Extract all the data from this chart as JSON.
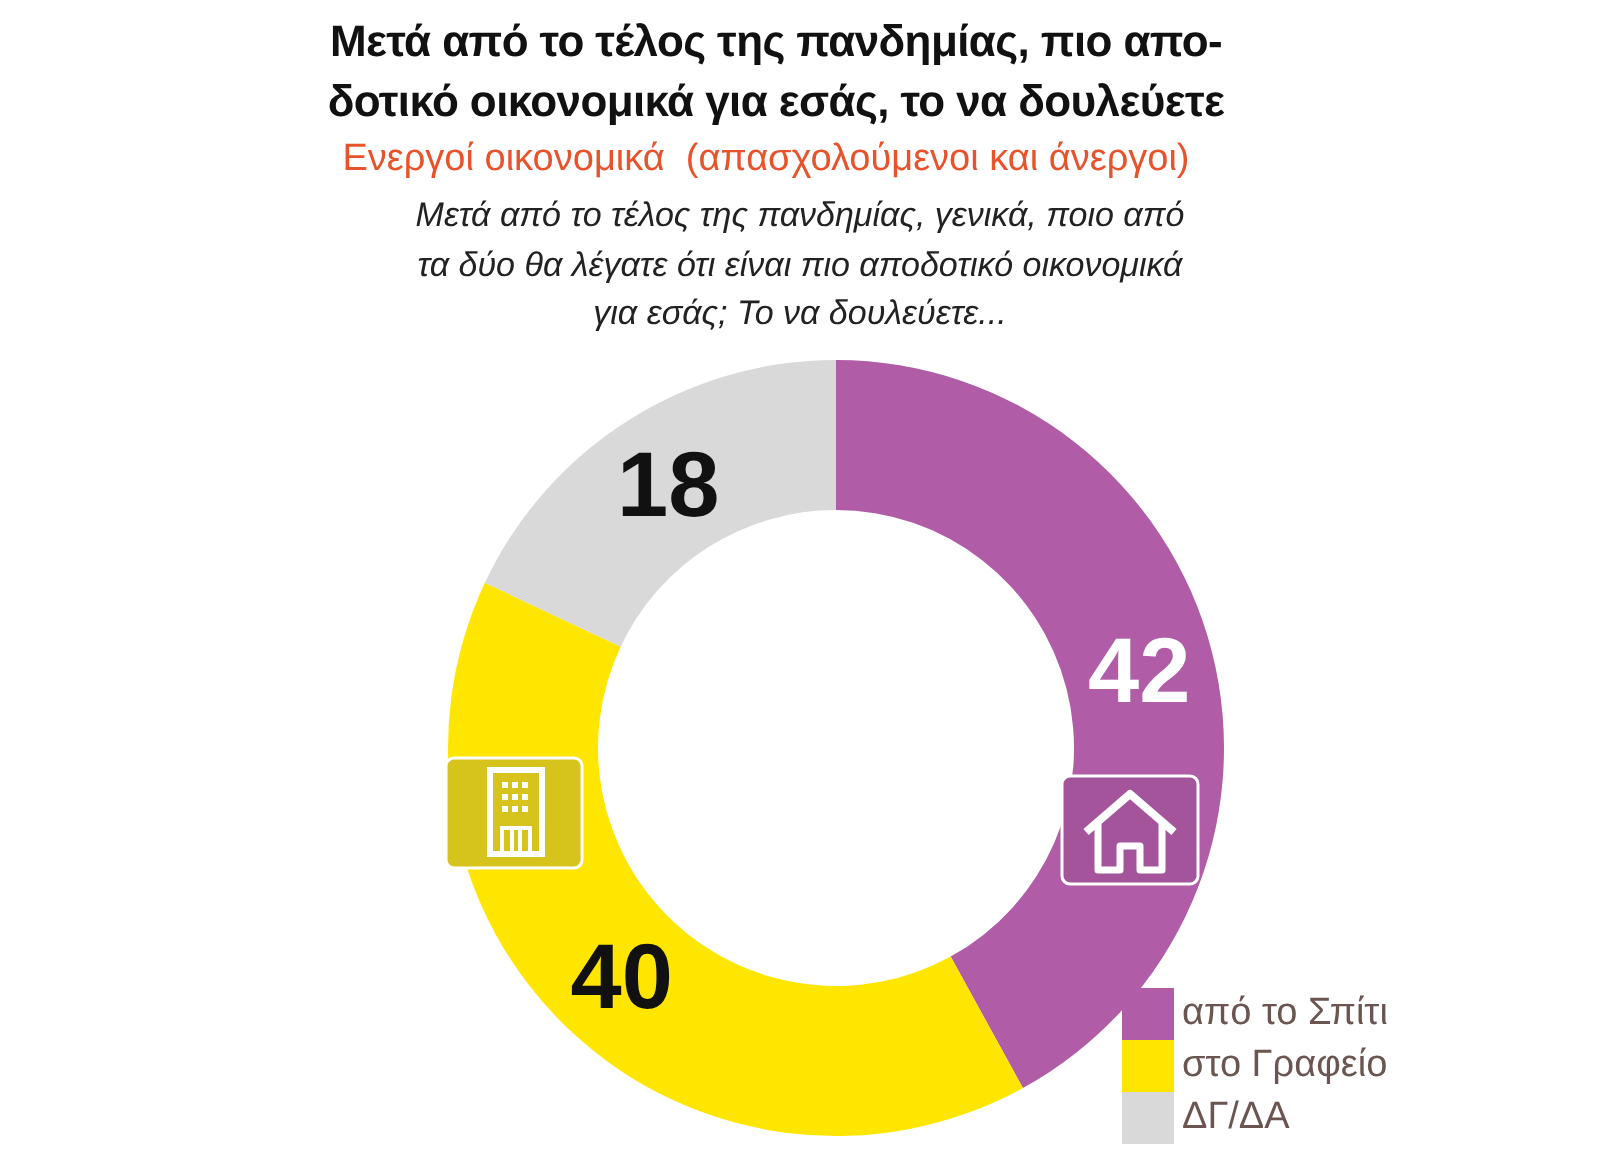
{
  "chart_data": {
    "type": "donut",
    "title": "Μετά από το τέλος της πανδημίας, πιο απο-\nδοτικό οικονομικά για εσάς, το να δουλεύετε",
    "subtitle": "Ενεργοί οικονομικά  (απασχολούμενοι και άνεργοι)",
    "annotations": [
      "Μετά από το τέλος της πανδημίας, γενικά, ποιο από\nτα δύο θα λέγατε ότι είναι πιο αποδοτικό οικονομικά\nγια εσάς; Το να δουλεύετε..."
    ],
    "categories": [
      "από το Σπίτι",
      "στο Γραφείο",
      "ΔΓ/ΔΑ"
    ],
    "values": [
      42,
      40,
      18
    ],
    "colors": [
      "#b05ca6",
      "#ffe600",
      "#d9d9d9"
    ],
    "data_labels": true,
    "legend": "bottom right"
  }
}
